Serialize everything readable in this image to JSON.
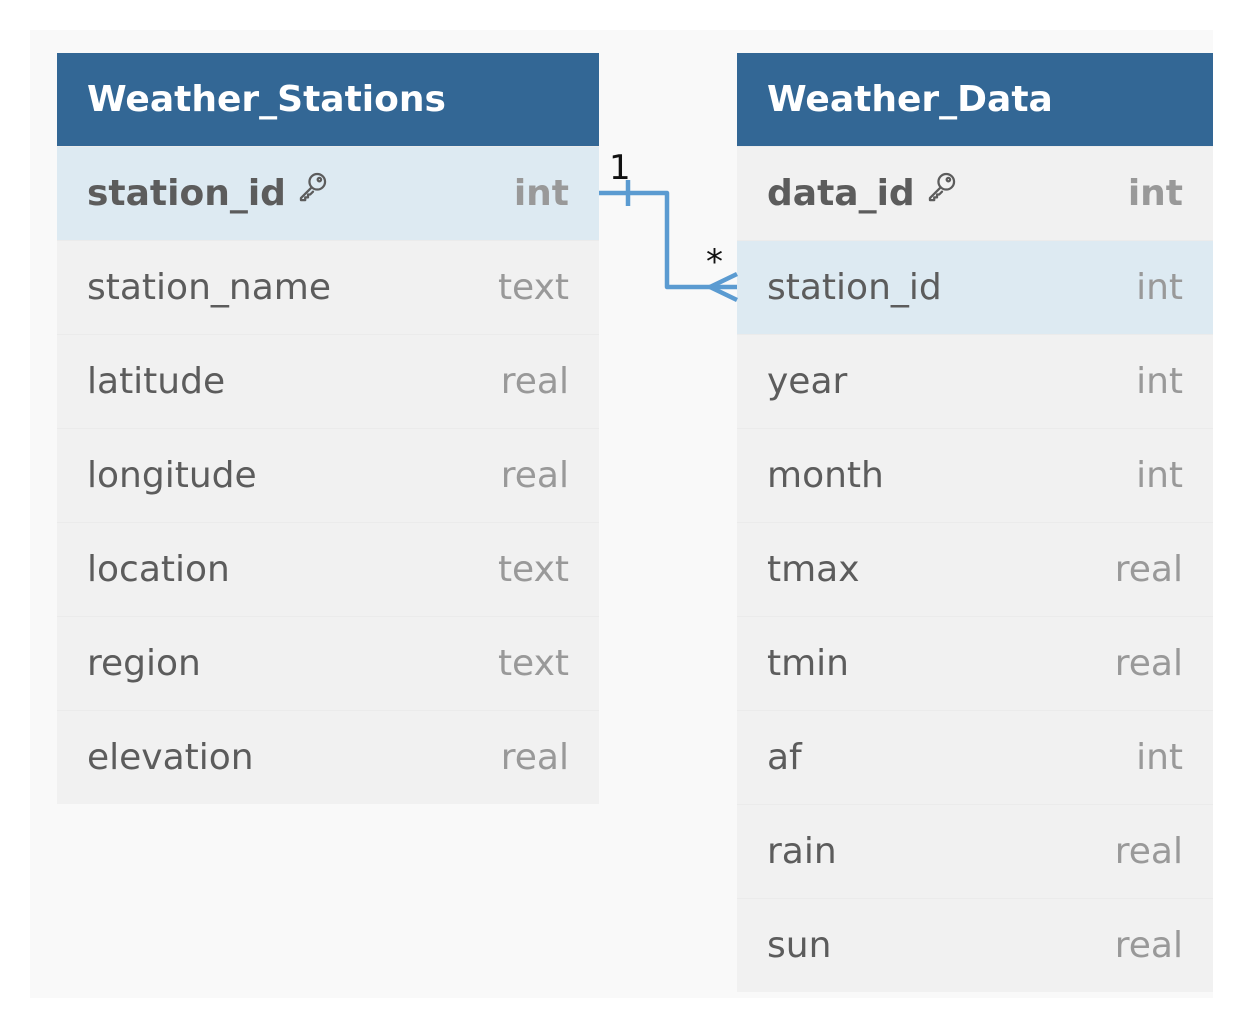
{
  "tables": [
    {
      "name": "Weather_Stations",
      "columns": [
        {
          "name": "station_id",
          "type": "int",
          "primary_key": true
        },
        {
          "name": "station_name",
          "type": "text"
        },
        {
          "name": "latitude",
          "type": "real"
        },
        {
          "name": "longitude",
          "type": "real"
        },
        {
          "name": "location",
          "type": "text"
        },
        {
          "name": "region",
          "type": "text"
        },
        {
          "name": "elevation",
          "type": "real"
        }
      ]
    },
    {
      "name": "Weather_Data",
      "columns": [
        {
          "name": "data_id",
          "type": "int",
          "primary_key": true
        },
        {
          "name": "station_id",
          "type": "int"
        },
        {
          "name": "year",
          "type": "int"
        },
        {
          "name": "month",
          "type": "int"
        },
        {
          "name": "tmax",
          "type": "real"
        },
        {
          "name": "tmin",
          "type": "real"
        },
        {
          "name": "af",
          "type": "int"
        },
        {
          "name": "rain",
          "type": "real"
        },
        {
          "name": "sun",
          "type": "real"
        }
      ]
    }
  ],
  "relationship": {
    "from_table": "Weather_Stations",
    "from_column": "station_id",
    "from_cardinality": "1",
    "to_table": "Weather_Data",
    "to_column": "station_id",
    "to_cardinality": "*"
  },
  "colors": {
    "header": "#336795",
    "highlight_row": "#ddeaf2",
    "connector": "#5b9bd1"
  },
  "icons": {
    "primary_key": "key-icon"
  }
}
